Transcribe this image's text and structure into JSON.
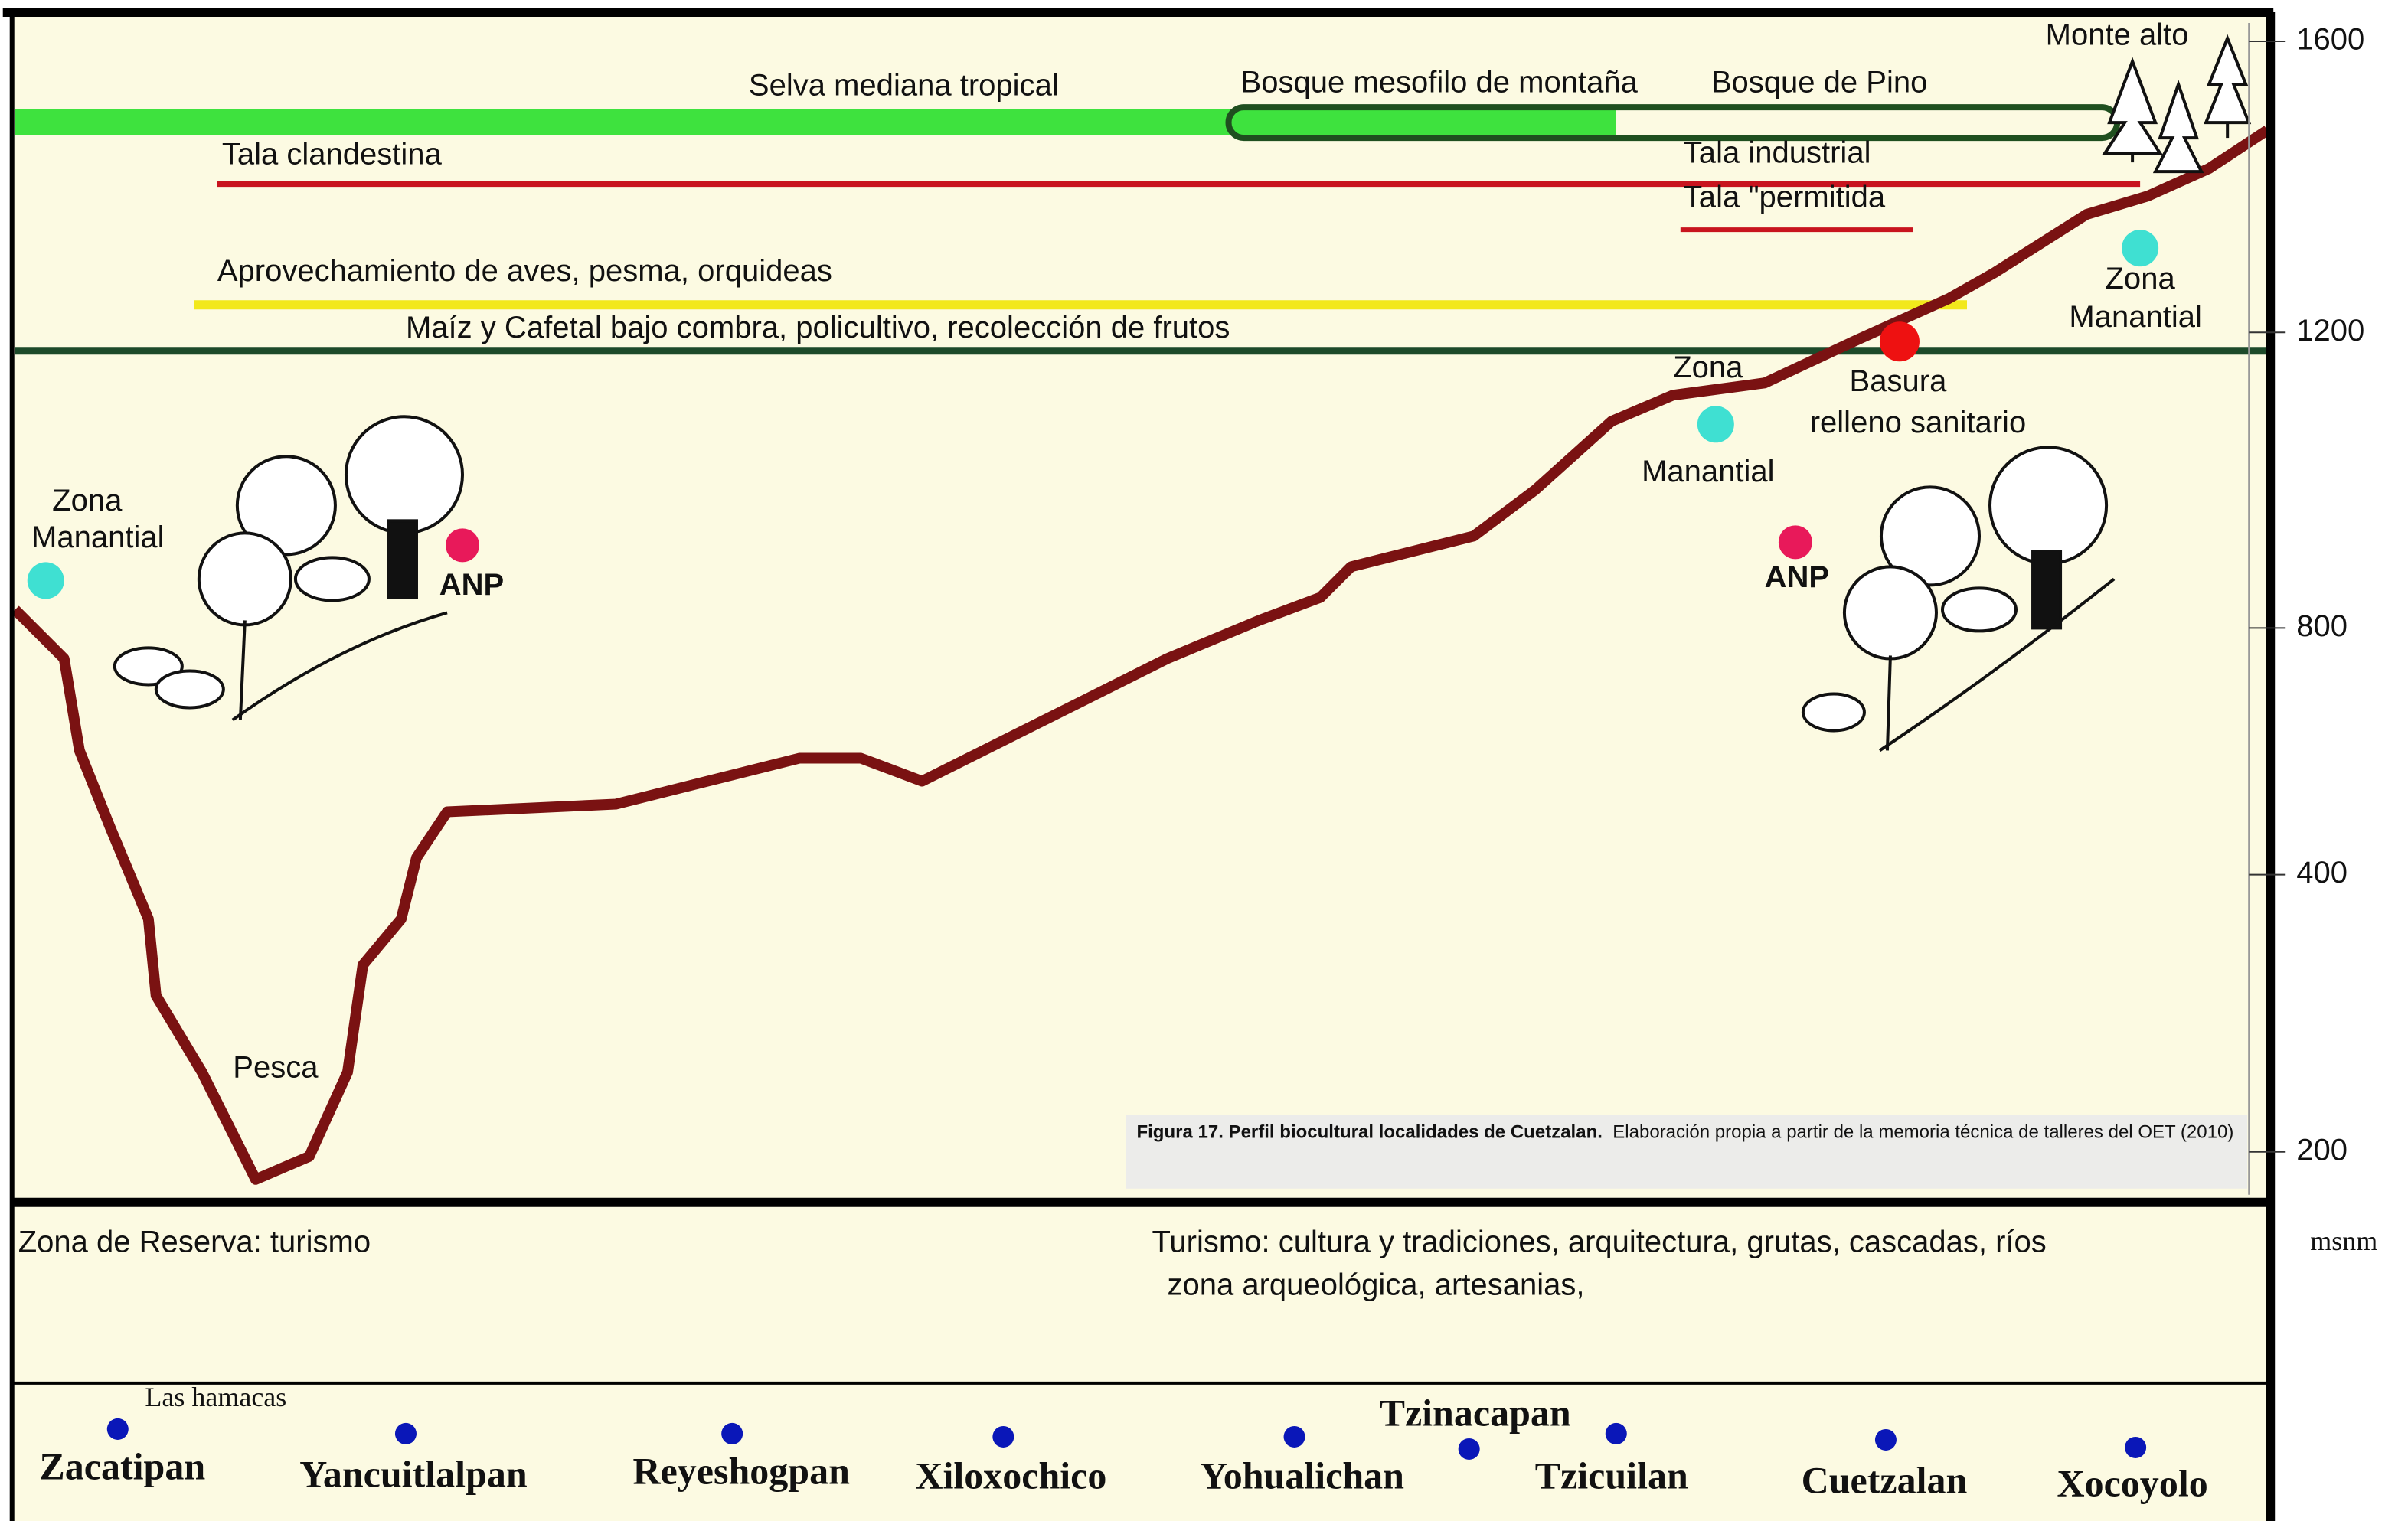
{
  "axis": {
    "unit": "msnm",
    "ticks": [
      1600,
      1200,
      800,
      400,
      200
    ]
  },
  "labels": [
    "Selva mediana tropical",
    "Bosque mesofilo de montaña",
    "Bosque de Pino",
    "Monte alto",
    "Tala clandestina",
    "Tala industrial",
    "Tala \"permitida",
    "Aprovechamiento de aves, pesma, orquideas",
    "Maíz  y  Cafetal bajo combra, policultivo, recolección de frutos",
    "Zona",
    "Manantial",
    "Zona",
    "Manantial",
    "Zona",
    "Manantial",
    "Basura",
    "relleno sanitario",
    "ANP",
    "ANP",
    "Pesca"
  ],
  "caption": {
    "title": "Figura 17. Perfil biocultural localidades de Cuetzalan.",
    "text": "Elaboración propia a partir de la memoria técnica de talleres del OET  (2010)"
  },
  "zones": [
    "Zona de Reserva: turismo",
    "Turismo: cultura   y tradiciones, arquitectura, grutas, cascadas, ríos",
    "zona arqueológica, artesanias,"
  ],
  "localities": [
    "Zacatipan",
    "Las hamacas",
    "Yancuitlalpan",
    "Reyeshogpan",
    "Xiloxochico",
    "Yohualichan",
    "Tzinacapan",
    "Tzicuilan",
    "Cuetzalan",
    "Xocoyolo"
  ]
}
